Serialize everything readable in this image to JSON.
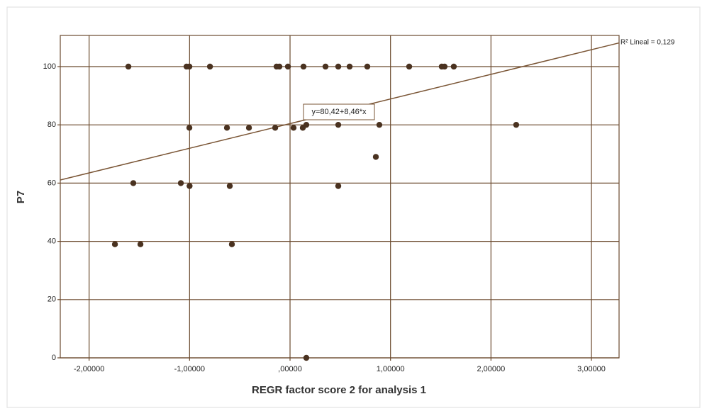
{
  "chart_data": {
    "type": "scatter",
    "x_label": "REGR factor score  2 for analysis 1",
    "y_label": "P7",
    "x": [
      -1.609,
      -1.03,
      -1.002,
      -0.797,
      -0.134,
      -0.106,
      -0.021,
      0.134,
      0.353,
      0.48,
      0.593,
      0.769,
      1.186,
      1.51,
      1.538,
      1.63,
      -1.002,
      -0.628,
      -0.409,
      -0.148,
      0.035,
      0.127,
      0.162,
      0.48,
      0.889,
      2.251,
      0.854,
      -1.56,
      -1.087,
      -1.0,
      -0.6,
      0.48,
      -1.743,
      -1.489,
      -0.579,
      0.162
    ],
    "values": [
      100,
      100,
      100,
      100,
      100,
      100,
      100,
      100,
      100,
      100,
      100,
      100,
      100,
      100,
      100,
      100,
      79,
      79,
      79,
      79,
      79,
      79,
      80,
      80,
      80,
      80,
      69,
      60,
      60,
      59,
      59,
      59,
      39,
      39,
      39,
      0
    ],
    "color": "#4a3220",
    "line_color": "#7a5535",
    "fit": {
      "intercept": 80.42,
      "slope": 8.46,
      "label": "y=80,42+8,46*x"
    },
    "r2_label": "R² Lineal = 0,129",
    "xlim": [
      -2.287,
      3.275
    ],
    "ylim": [
      0,
      110.7
    ],
    "xticks": [
      {
        "value": -2,
        "label": "-2,00000"
      },
      {
        "value": -1,
        "label": "-1,00000"
      },
      {
        "value": 0,
        "label": ",00000"
      },
      {
        "value": 1,
        "label": "1,00000"
      },
      {
        "value": 2,
        "label": "2,00000"
      },
      {
        "value": 3,
        "label": "3,00000"
      }
    ],
    "yticks": [
      0,
      20,
      40,
      60,
      80,
      100
    ],
    "grid": true
  }
}
